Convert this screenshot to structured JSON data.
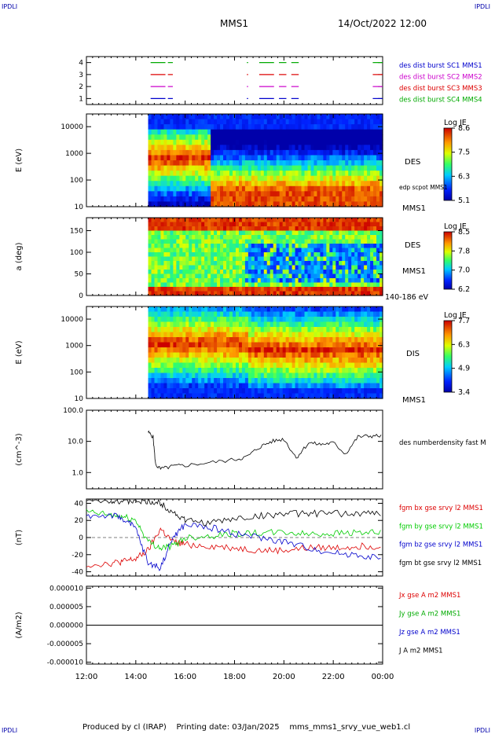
{
  "corner_label": "IPDLI",
  "header": {
    "mission": "MMS1",
    "datetime": "14/Oct/2022 12:00"
  },
  "footer": {
    "produced": "Produced by cl (IRAP)",
    "printing": "Printing date: 03/Jan/2025",
    "file": "mms_mms1_srvy_vue_web1.cl"
  },
  "time_axis": {
    "ticks": [
      "12:00",
      "14:00",
      "16:00",
      "18:00",
      "20:00",
      "22:00",
      "00:00"
    ],
    "hours": [
      0,
      2,
      4,
      6,
      8,
      10,
      12
    ]
  },
  "chart_data": [
    {
      "type": "scatter",
      "name": "burst intervals",
      "ylim": [
        0.5,
        4.5
      ],
      "yticks": [
        "1",
        "2",
        "3",
        "4"
      ],
      "legend": [
        {
          "text": "des dist burst SC1 MMS1",
          "color": "#0000cc"
        },
        {
          "text": "des dist burst SC2 MMS2",
          "color": "#cc00cc"
        },
        {
          "text": "des dist burst SC3 MMS3",
          "color": "#dd0000"
        },
        {
          "text": "des dist burst SC4 MMS4",
          "color": "#00aa00"
        }
      ],
      "intervals_hours": [
        [
          2.6,
          3.2
        ],
        [
          3.3,
          3.5
        ],
        [
          6.5,
          6.55
        ],
        [
          7.0,
          7.6
        ],
        [
          7.8,
          8.1
        ],
        [
          8.3,
          8.6
        ],
        [
          11.6,
          12.0
        ]
      ]
    },
    {
      "type": "heatmap",
      "ylabel": "E (eV)",
      "yscale": "log",
      "yticks": [
        "10",
        "100",
        "1000",
        "10000"
      ],
      "right_labels": [
        "DES",
        "edp scpot MMS1",
        "MMS1"
      ],
      "colorbar": {
        "title": "Log JE",
        "ticks": [
          "8.6",
          "7.5",
          "6.3",
          "5.1"
        ]
      },
      "data_start_hours": 2.5
    },
    {
      "type": "heatmap",
      "ylabel": "a (deg)",
      "ylim": [
        0,
        180
      ],
      "yticks": [
        "0",
        "50",
        "100",
        "150"
      ],
      "right_labels": [
        "DES",
        "MMS1",
        "140-186 eV"
      ],
      "colorbar": {
        "title": "Log JE",
        "ticks": [
          "8.5",
          "7.8",
          "7.0",
          "6.2"
        ]
      },
      "data_start_hours": 2.5
    },
    {
      "type": "heatmap",
      "ylabel": "E (eV)",
      "yscale": "log",
      "yticks": [
        "10",
        "100",
        "1000",
        "10000"
      ],
      "right_labels": [
        "DIS",
        "MMS1"
      ],
      "colorbar": {
        "title": "Log JE",
        "ticks": [
          "7.7",
          "6.3",
          "4.9",
          "3.4"
        ]
      },
      "data_start_hours": 2.5
    },
    {
      "type": "line",
      "ylabel": "(cm^-3)",
      "yscale": "log",
      "yticks": [
        "1.0",
        "10.0",
        "100.0"
      ],
      "legend": [
        {
          "text": "des numberdensity fast M",
          "color": "#000000"
        }
      ],
      "x_hours": [
        2.5,
        2.7,
        2.8,
        3.0,
        3.5,
        4.0,
        5.0,
        6.0,
        6.5,
        7.0,
        7.5,
        8.0,
        8.5,
        9.0,
        9.5,
        10.0,
        10.5,
        11.0,
        11.5,
        12.0
      ],
      "values": [
        20,
        14,
        1.8,
        1.3,
        1.6,
        1.7,
        2.1,
        2.6,
        3.2,
        6.5,
        10,
        12,
        3.0,
        9,
        8,
        9,
        4.0,
        14,
        15,
        15
      ]
    },
    {
      "type": "line",
      "ylabel": "(nT)",
      "ylim": [
        -45,
        45
      ],
      "yticks": [
        "-40",
        "-20",
        "0",
        "20",
        "40"
      ],
      "legend": [
        {
          "text": "fgm bx gse srvy l2 MMS1",
          "color": "#dd0000"
        },
        {
          "text": "fgm by gse srvy l2 MMS1",
          "color": "#00cc00"
        },
        {
          "text": "fgm bz gse srvy l2 MMS1",
          "color": "#0000cc"
        },
        {
          "text": "fgm bt gse srvy l2 MMS1",
          "color": "#000000"
        }
      ],
      "x_hours": [
        0,
        1,
        1.5,
        2,
        2.5,
        3,
        3.5,
        4,
        5,
        6,
        7,
        8,
        9,
        10,
        11,
        12
      ],
      "series": [
        {
          "name": "fgm bx gse srvy l2 MMS1",
          "color": "#dd0000",
          "values": [
            -32,
            -30,
            -28,
            -25,
            -15,
            10,
            -5,
            -8,
            -10,
            -12,
            -15,
            -15,
            -12,
            -12,
            -10,
            -10
          ]
        },
        {
          "name": "fgm by gse srvy l2 MMS1",
          "color": "#00cc00",
          "values": [
            30,
            26,
            24,
            20,
            -5,
            -12,
            -10,
            0,
            2,
            5,
            5,
            6,
            4,
            5,
            6,
            5
          ]
        },
        {
          "name": "fgm bz gse srvy l2 MMS1",
          "color": "#0000cc",
          "values": [
            25,
            26,
            22,
            10,
            -30,
            -35,
            0,
            15,
            12,
            5,
            0,
            -5,
            -12,
            -18,
            -20,
            -25
          ]
        },
        {
          "name": "fgm bt gse srvy l2 MMS1",
          "color": "#000000",
          "values": [
            45,
            44,
            42,
            43,
            42,
            40,
            30,
            20,
            17,
            22,
            25,
            28,
            28,
            28,
            28,
            28
          ]
        }
      ]
    },
    {
      "type": "line",
      "ylabel": "(A/m2)",
      "ylim": [
        -1.05e-05,
        1.05e-05
      ],
      "yticks": [
        "0.000010",
        "0.000005",
        "0.000000",
        "-0.000005",
        "-0.000010"
      ],
      "legend": [
        {
          "text": "Jx gse A m2 MMS1",
          "color": "#dd0000"
        },
        {
          "text": "Jy gse A m2 MMS1",
          "color": "#00aa00"
        },
        {
          "text": "Jz gse A m2 MMS1",
          "color": "#0000cc"
        },
        {
          "text": "J A m2 MMS1",
          "color": "#000000"
        }
      ],
      "values_note": "",
      "level": 0
    }
  ]
}
